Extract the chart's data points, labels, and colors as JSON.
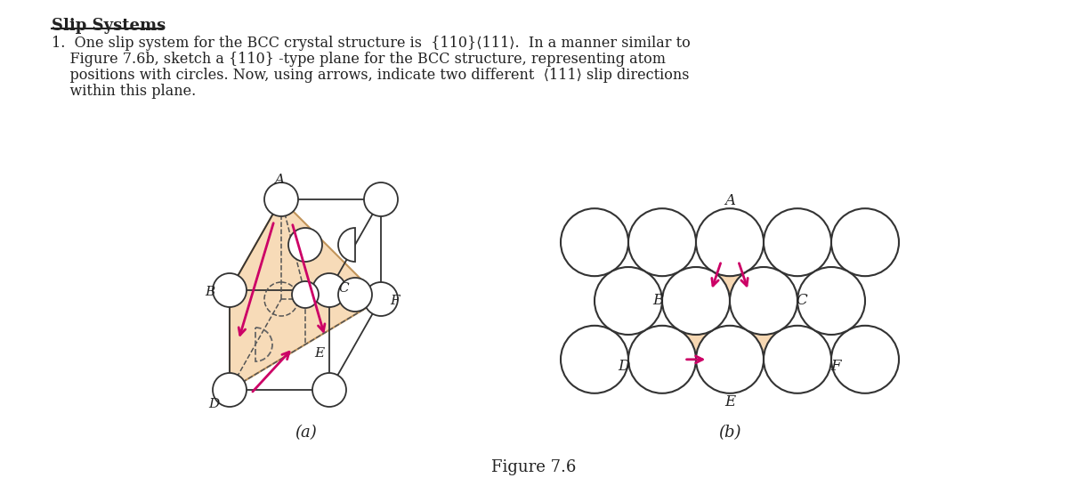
{
  "bg_color": "#ffffff",
  "text_color": "#222222",
  "title_text": "Slip Systems",
  "caption": "Figure 7.6",
  "label_a": "(a)",
  "label_b": "(b)",
  "arrow_color": "#cc0066",
  "plane_fill": "#f5cfa0",
  "plane_alpha": 0.75,
  "atom_edge_color": "#333333",
  "atom_face_color": "#ffffff",
  "dashed_color": "#555555",
  "para_lines": [
    "1.  One slip system for the BCC crystal structure is  {110}⟨111⟩.  In a manner similar to",
    "    Figure 7.6b, sketch a {110} -type plane for the BCC structure, representing atom",
    "    positions with circles. Now, using arrows, indicate two different  ⟨111⟩ slip directions",
    "    within this plane."
  ]
}
